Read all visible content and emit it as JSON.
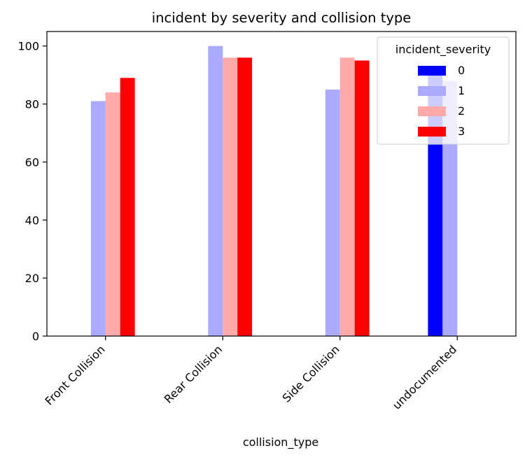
{
  "chart_data": {
    "type": "bar",
    "title": "incident by severity and collision type",
    "xlabel": "collision_type",
    "ylabel": "",
    "categories": [
      "Front Collision",
      "Rear Collision",
      "Side Collision",
      "undocumented"
    ],
    "series": [
      {
        "name": "0",
        "color": "#0000ff",
        "values": [
          0,
          0,
          0,
          90
        ]
      },
      {
        "name": "1",
        "color": "#aaaaff",
        "values": [
          81,
          100,
          85,
          88
        ]
      },
      {
        "name": "2",
        "color": "#ffaaaa",
        "values": [
          84,
          96,
          96,
          0
        ]
      },
      {
        "name": "3",
        "color": "#ff0000",
        "values": [
          89,
          96,
          95,
          0
        ]
      }
    ],
    "ylim": [
      0,
      105
    ],
    "yticks": [
      0,
      20,
      40,
      60,
      80,
      100
    ],
    "grid": false,
    "legend": {
      "title": "incident_severity",
      "placement": "upper-right"
    }
  }
}
